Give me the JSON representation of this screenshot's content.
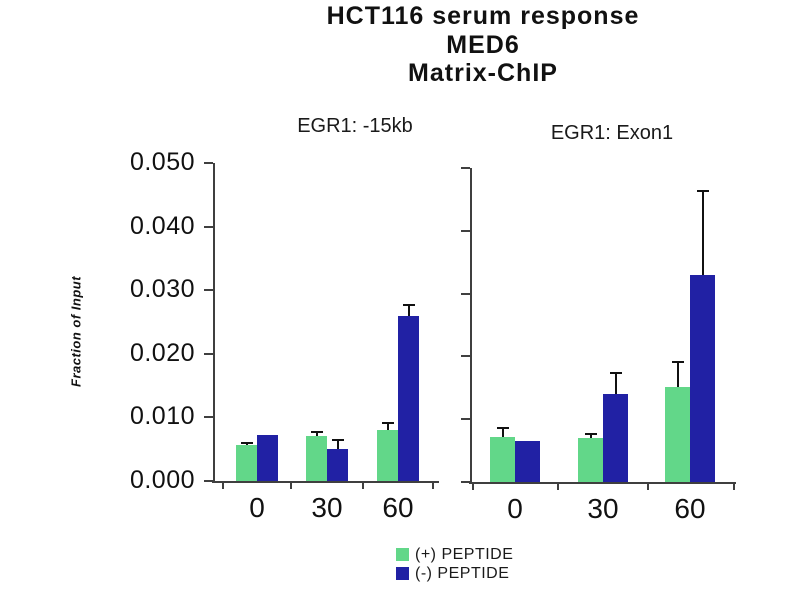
{
  "title": {
    "line1": "HCT116 serum response",
    "line2": "MED6",
    "line3": "Matrix-ChIP"
  },
  "y_axis": {
    "label": "Fraction of Input",
    "tick_labels": [
      "0.050",
      "0.040",
      "0.030",
      "0.020",
      "0.010",
      "0.000"
    ],
    "min": 0,
    "max": 0.05,
    "step": 0.01
  },
  "legend": {
    "position": "bottom",
    "items": [
      {
        "label": "(+) PEPTIDE",
        "color": "#62d789"
      },
      {
        "label": "(-) PEPTIDE",
        "color": "#2121a4"
      }
    ]
  },
  "chart_data": [
    {
      "type": "bar",
      "title": "EGR1: -15kb",
      "categories": [
        "0",
        "30",
        "60"
      ],
      "xlabel": "",
      "ylabel": "Fraction of Input",
      "ylim": [
        0,
        0.05
      ],
      "grid": false,
      "series": [
        {
          "name": "(+) PEPTIDE",
          "color": "#62d789",
          "values": [
            0.0057,
            0.007,
            0.008
          ],
          "errors": [
            0.0005,
            0.0008,
            0.0013
          ]
        },
        {
          "name": "(-) PEPTIDE",
          "color": "#2121a4",
          "values": [
            0.0073,
            0.0051,
            0.026
          ],
          "errors": [
            0,
            0.0015,
            0.0018
          ]
        }
      ]
    },
    {
      "type": "bar",
      "title": "EGR1: Exon1",
      "categories": [
        "0",
        "30",
        "60"
      ],
      "xlabel": "",
      "ylabel": "Fraction of Input",
      "ylim": [
        0,
        0.05
      ],
      "grid": false,
      "series": [
        {
          "name": "(+) PEPTIDE",
          "color": "#62d789",
          "values": [
            0.0071,
            0.007,
            0.0152
          ],
          "errors": [
            0.0016,
            0.0008,
            0.004
          ]
        },
        {
          "name": "(-) PEPTIDE",
          "color": "#2121a4",
          "values": [
            0.0066,
            0.014,
            0.033
          ],
          "errors": [
            0,
            0.0035,
            0.0135
          ]
        }
      ]
    }
  ]
}
